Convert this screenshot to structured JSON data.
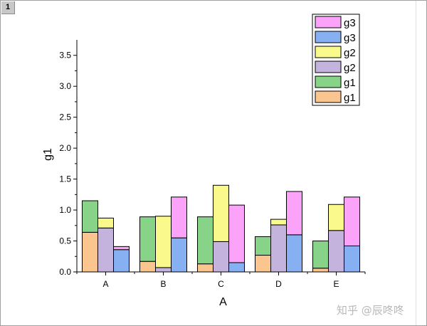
{
  "window": {
    "layer_label": "1"
  },
  "watermark": "知乎 @辰咚咚",
  "chart_data": {
    "type": "bar",
    "stacked": true,
    "grouped": true,
    "xlabel": "A",
    "ylabel": "g1",
    "categories": [
      "A",
      "B",
      "C",
      "D",
      "E"
    ],
    "ylim": [
      0,
      3.75
    ],
    "yticks": [
      "0.0",
      "0.5",
      "1.0",
      "1.5",
      "2.0",
      "2.5",
      "3.0",
      "3.5"
    ],
    "legend_position": "top-right",
    "legend": [
      "g3",
      "g3",
      "g2",
      "g2",
      "g1",
      "g1"
    ],
    "colors": {
      "g1_bottom": "#fbc58f",
      "g1_top": "#87d387",
      "g2_bottom": "#c4b3dc",
      "g2_top": "#fafa8c",
      "g3_bottom": "#87b0f2",
      "g3_top": "#fba3f8"
    },
    "groups": [
      {
        "name": "g1",
        "series": [
          {
            "name": "g1",
            "color_key": "g1_bottom",
            "values": [
              0.64,
              0.17,
              0.13,
              0.27,
              0.06
            ]
          },
          {
            "name": "g1",
            "color_key": "g1_top",
            "values": [
              0.51,
              0.72,
              0.76,
              0.3,
              0.44
            ]
          }
        ]
      },
      {
        "name": "g2",
        "series": [
          {
            "name": "g2",
            "color_key": "g2_bottom",
            "values": [
              0.71,
              0.07,
              0.49,
              0.76,
              0.67
            ]
          },
          {
            "name": "g2",
            "color_key": "g2_top",
            "values": [
              0.16,
              0.83,
              0.91,
              0.09,
              0.42
            ]
          }
        ]
      },
      {
        "name": "g3",
        "series": [
          {
            "name": "g3",
            "color_key": "g3_bottom",
            "values": [
              0.36,
              0.55,
              0.15,
              0.6,
              0.42
            ]
          },
          {
            "name": "g3",
            "color_key": "g3_top",
            "values": [
              0.05,
              0.66,
              0.93,
              0.7,
              0.79
            ]
          }
        ]
      }
    ]
  }
}
